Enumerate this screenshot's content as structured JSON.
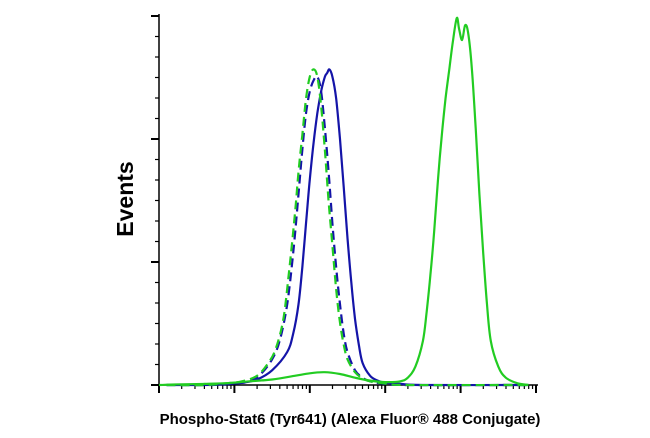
{
  "chart_data": {
    "type": "line",
    "title": "",
    "xlabel": "Phospho-Stat6 (Tyr641) (Alexa Fluor® 488 Conjugate)",
    "ylabel": "Events",
    "x_scale": "log",
    "x_range_decades": [
      0,
      5
    ],
    "y_range": [
      0,
      100
    ],
    "grid": false,
    "legend": "none",
    "series": [
      {
        "color": "#1414a8",
        "style": "solid",
        "points": [
          [
            0.1,
            0
          ],
          [
            0.6,
            0
          ],
          [
            0.9,
            0.3
          ],
          [
            1.1,
            0.6
          ],
          [
            1.3,
            1.5
          ],
          [
            1.5,
            4
          ],
          [
            1.7,
            9
          ],
          [
            1.78,
            14
          ],
          [
            1.85,
            22
          ],
          [
            1.9,
            32
          ],
          [
            1.95,
            44
          ],
          [
            2.0,
            56
          ],
          [
            2.05,
            66
          ],
          [
            2.1,
            74
          ],
          [
            2.15,
            80
          ],
          [
            2.2,
            84
          ],
          [
            2.23,
            85
          ],
          [
            2.26,
            86
          ],
          [
            2.3,
            84
          ],
          [
            2.35,
            78
          ],
          [
            2.4,
            67
          ],
          [
            2.45,
            54
          ],
          [
            2.5,
            40
          ],
          [
            2.55,
            28
          ],
          [
            2.6,
            18
          ],
          [
            2.65,
            11
          ],
          [
            2.7,
            6
          ],
          [
            2.8,
            2.5
          ],
          [
            2.9,
            1.2
          ],
          [
            3.0,
            0.6
          ],
          [
            3.2,
            0.3
          ],
          [
            3.5,
            0
          ],
          [
            4.9,
            0
          ]
        ]
      },
      {
        "color": "#1414a8",
        "style": "dashed",
        "points": [
          [
            0.1,
            0
          ],
          [
            0.7,
            0
          ],
          [
            1.0,
            0.4
          ],
          [
            1.2,
            1
          ],
          [
            1.35,
            3
          ],
          [
            1.5,
            7
          ],
          [
            1.6,
            12
          ],
          [
            1.7,
            22
          ],
          [
            1.78,
            36
          ],
          [
            1.85,
            52
          ],
          [
            1.9,
            64
          ],
          [
            1.95,
            74
          ],
          [
            2.0,
            80
          ],
          [
            2.05,
            83
          ],
          [
            2.1,
            84
          ],
          [
            2.15,
            80
          ],
          [
            2.2,
            70
          ],
          [
            2.25,
            58
          ],
          [
            2.3,
            44
          ],
          [
            2.35,
            32
          ],
          [
            2.4,
            22
          ],
          [
            2.45,
            14
          ],
          [
            2.5,
            9
          ],
          [
            2.6,
            4
          ],
          [
            2.7,
            2
          ],
          [
            2.8,
            1
          ],
          [
            3.0,
            0.3
          ],
          [
            3.3,
            0
          ],
          [
            4.9,
            0
          ]
        ]
      },
      {
        "color": "#22cc22",
        "style": "dashed",
        "points": [
          [
            0.1,
            0
          ],
          [
            0.6,
            0
          ],
          [
            0.9,
            0.5
          ],
          [
            1.1,
            1
          ],
          [
            1.3,
            2.5
          ],
          [
            1.45,
            6
          ],
          [
            1.55,
            10
          ],
          [
            1.65,
            18
          ],
          [
            1.72,
            30
          ],
          [
            1.8,
            46
          ],
          [
            1.85,
            58
          ],
          [
            1.9,
            68
          ],
          [
            1.95,
            78
          ],
          [
            2.0,
            84
          ],
          [
            2.05,
            86
          ],
          [
            2.1,
            84
          ],
          [
            2.15,
            76
          ],
          [
            2.2,
            64
          ],
          [
            2.25,
            50
          ],
          [
            2.3,
            38
          ],
          [
            2.35,
            26
          ],
          [
            2.4,
            17
          ],
          [
            2.45,
            11
          ],
          [
            2.5,
            7
          ],
          [
            2.6,
            3.5
          ],
          [
            2.7,
            1.8
          ],
          [
            2.8,
            1
          ],
          [
            3.0,
            0.4
          ],
          [
            3.3,
            0
          ],
          [
            4.9,
            0
          ]
        ]
      },
      {
        "color": "#22cc22",
        "style": "solid",
        "points": [
          [
            0.0,
            0
          ],
          [
            0.3,
            0.2
          ],
          [
            0.6,
            0.3
          ],
          [
            0.9,
            0.5
          ],
          [
            1.2,
            1
          ],
          [
            1.5,
            1.5
          ],
          [
            1.8,
            2.5
          ],
          [
            2.0,
            3.2
          ],
          [
            2.2,
            3.5
          ],
          [
            2.4,
            3
          ],
          [
            2.6,
            2
          ],
          [
            2.8,
            1.2
          ],
          [
            3.0,
            0.8
          ],
          [
            3.2,
            1
          ],
          [
            3.3,
            2
          ],
          [
            3.4,
            5
          ],
          [
            3.5,
            12
          ],
          [
            3.55,
            20
          ],
          [
            3.6,
            30
          ],
          [
            3.65,
            42
          ],
          [
            3.7,
            56
          ],
          [
            3.75,
            68
          ],
          [
            3.8,
            78
          ],
          [
            3.85,
            86
          ],
          [
            3.9,
            94
          ],
          [
            3.95,
            100
          ],
          [
            3.98,
            97
          ],
          [
            4.02,
            94
          ],
          [
            4.06,
            98
          ],
          [
            4.1,
            96
          ],
          [
            4.15,
            86
          ],
          [
            4.2,
            70
          ],
          [
            4.25,
            52
          ],
          [
            4.3,
            36
          ],
          [
            4.35,
            22
          ],
          [
            4.4,
            12
          ],
          [
            4.5,
            5
          ],
          [
            4.6,
            2
          ],
          [
            4.75,
            0.5
          ],
          [
            4.9,
            0
          ]
        ]
      }
    ]
  }
}
